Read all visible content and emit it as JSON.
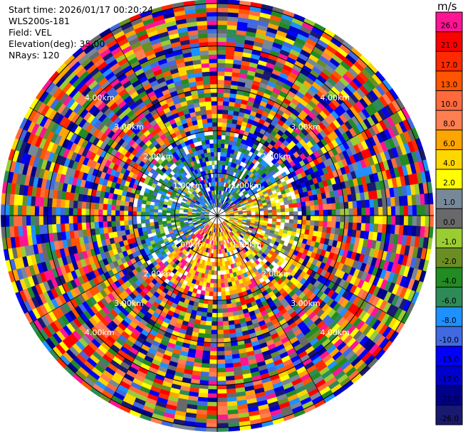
{
  "info": {
    "start_time": "Start time: 2026/01/17 00:20:24",
    "instrument": "WLS200s-181",
    "field": "Field: VEL",
    "elevation": "Elevation(deg): 35.00",
    "nrays": "NRays: 120"
  },
  "chart_data": {
    "type": "heatmap",
    "projection": "polar-ppi",
    "nrays": 120,
    "range_rings": [
      {
        "range_km": 1,
        "label": "1.00km"
      },
      {
        "range_km": 2,
        "label": "2.00km"
      },
      {
        "range_km": 3,
        "label": "3.00km"
      },
      {
        "range_km": 4,
        "label": "4.00km"
      },
      {
        "range_km": 5,
        "label": "5.00km"
      }
    ],
    "max_range_km": 5.1,
    "colorbar": {
      "unit": "m/s",
      "ticks": [
        "26.0",
        "21.0",
        "17.0",
        "13.0",
        "10.0",
        "8.0",
        "6.0",
        "4.0",
        "2.0",
        "1.0",
        "0.0",
        "-1.0",
        "-2.0",
        "-4.0",
        "-6.0",
        "-8.0",
        "-10.0",
        "-13.0",
        "-17.0",
        "-21.0",
        "-26.0",
        "-30.0"
      ],
      "colors": [
        "#ff1493",
        "#ff0000",
        "#ff2a00",
        "#ff5500",
        "#ff6a3d",
        "#ff7f50",
        "#ffa500",
        "#ffd700",
        "#ffff00",
        "#778899",
        "#696969",
        "#9acd32",
        "#6b8e23",
        "#228b22",
        "#2e8b57",
        "#1e90ff",
        "#4169e1",
        "#0000ff",
        "#0000cd",
        "#00008b",
        "#191970"
      ]
    }
  }
}
